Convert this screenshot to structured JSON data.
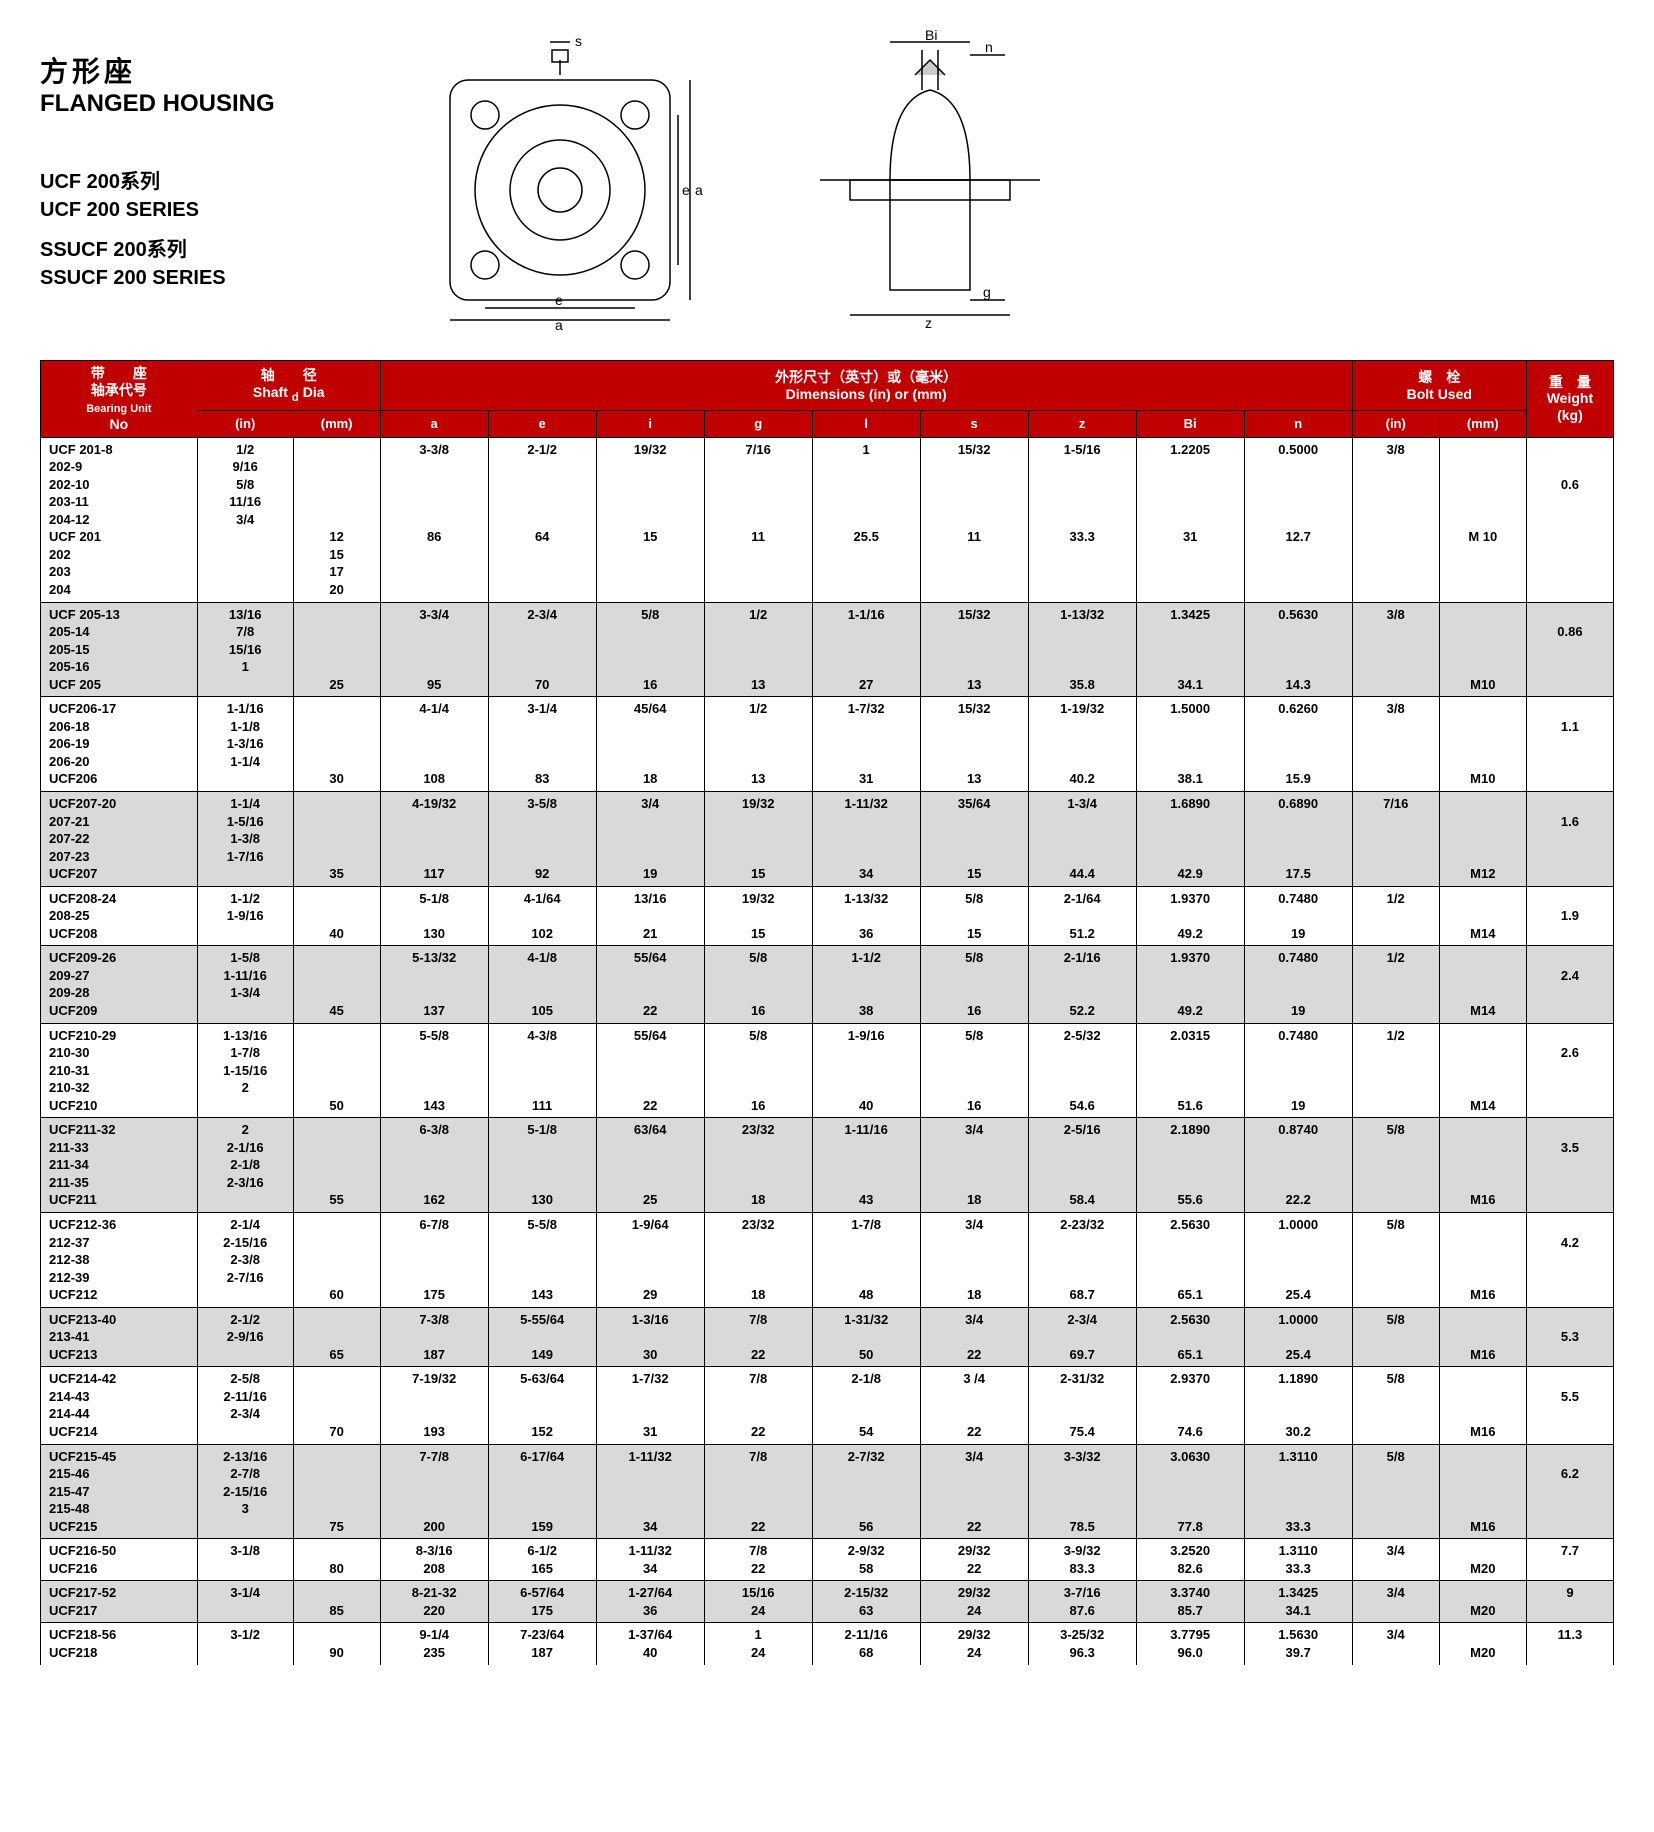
{
  "title": {
    "cn": "方形座",
    "en": "FLANGED HOUSING"
  },
  "series": {
    "l1": "UCF  200系列",
    "l2": "UCF  200 SERIES",
    "l3": "SSUCF  200系列",
    "l4": "SSUCF  200 SERIES"
  },
  "header": {
    "bearing": {
      "top": "带　　座",
      "mid": "轴承代号",
      "bot": "Bearing Unit",
      "no": "No"
    },
    "shaft": {
      "top": "轴　　径",
      "mid": "Shaft",
      "d": "d",
      "dia": "Dia",
      "in": "(in)",
      "mm": "(mm)"
    },
    "dims": {
      "top": "外形尺寸（英寸）或（毫米）",
      "bot": "Dimensions (in) or (mm)",
      "a": "a",
      "e": "e",
      "i": "i",
      "g": "g",
      "l": "l",
      "s": "s",
      "z": "z",
      "Bi": "Bi",
      "n": "n"
    },
    "bolt": {
      "top": "螺　栓",
      "bot": "Bolt Used",
      "in": "(in)",
      "mm": "(mm)"
    },
    "weight": {
      "top": "重　量",
      "bot": "Weight",
      "kg": "(kg)"
    }
  },
  "groups": [
    {
      "alt": false,
      "no": [
        "UCF 201-8",
        "202-9",
        "202-10",
        "203-11",
        "204-12",
        "UCF 201",
        "202",
        "203",
        "204"
      ],
      "shaft_in": [
        "1/2",
        "9/16",
        "5/8",
        "11/16",
        "3/4"
      ],
      "shaft_mm": [
        "",
        "",
        "",
        "",
        "",
        "12",
        "15",
        "17",
        "20"
      ],
      "a": [
        "3-3/8",
        "",
        "",
        "",
        "",
        "86"
      ],
      "e": [
        "2-1/2",
        "",
        "",
        "",
        "",
        "64"
      ],
      "i": [
        "19/32",
        "",
        "",
        "",
        "",
        "15"
      ],
      "g": [
        "7/16",
        "",
        "",
        "",
        "",
        "11"
      ],
      "l": [
        "1",
        "",
        "",
        "",
        "",
        "25.5"
      ],
      "s": [
        "15/32",
        "",
        "",
        "",
        "",
        "11"
      ],
      "z": [
        "1-5/16",
        "",
        "",
        "",
        "",
        "33.3"
      ],
      "Bi": [
        "1.2205",
        "",
        "",
        "",
        "",
        "31"
      ],
      "n": [
        "0.5000",
        "",
        "",
        "",
        "",
        "12.7"
      ],
      "bin": [
        "3/8"
      ],
      "bmm": [
        "",
        "",
        "",
        "",
        "",
        "M 10"
      ],
      "wt": [
        "",
        "",
        "0.6"
      ]
    },
    {
      "alt": true,
      "no": [
        "UCF 205-13",
        "205-14",
        "205-15",
        "205-16",
        "UCF 205"
      ],
      "shaft_in": [
        "13/16",
        "7/8",
        "15/16",
        "1"
      ],
      "shaft_mm": [
        "",
        "",
        "",
        "",
        "25"
      ],
      "a": [
        "3-3/4",
        "",
        "",
        "",
        "95"
      ],
      "e": [
        "2-3/4",
        "",
        "",
        "",
        "70"
      ],
      "i": [
        "5/8",
        "",
        "",
        "",
        "16"
      ],
      "g": [
        "1/2",
        "",
        "",
        "",
        "13"
      ],
      "l": [
        "1-1/16",
        "",
        "",
        "",
        "27"
      ],
      "s": [
        "15/32",
        "",
        "",
        "",
        "13"
      ],
      "z": [
        "1-13/32",
        "",
        "",
        "",
        "35.8"
      ],
      "Bi": [
        "1.3425",
        "",
        "",
        "",
        "34.1"
      ],
      "n": [
        "0.5630",
        "",
        "",
        "",
        "14.3"
      ],
      "bin": [
        "3/8"
      ],
      "bmm": [
        "",
        "",
        "",
        "",
        "M10"
      ],
      "wt": [
        "",
        "0.86"
      ]
    },
    {
      "alt": false,
      "no": [
        "UCF206-17",
        "206-18",
        "206-19",
        "206-20",
        "UCF206"
      ],
      "shaft_in": [
        "1-1/16",
        "1-1/8",
        "1-3/16",
        "1-1/4"
      ],
      "shaft_mm": [
        "",
        "",
        "",
        "",
        "30"
      ],
      "a": [
        "4-1/4",
        "",
        "",
        "",
        "108"
      ],
      "e": [
        "3-1/4",
        "",
        "",
        "",
        "83"
      ],
      "i": [
        "45/64",
        "",
        "",
        "",
        "18"
      ],
      "g": [
        "1/2",
        "",
        "",
        "",
        "13"
      ],
      "l": [
        "1-7/32",
        "",
        "",
        "",
        "31"
      ],
      "s": [
        "15/32",
        "",
        "",
        "",
        "13"
      ],
      "z": [
        "1-19/32",
        "",
        "",
        "",
        "40.2"
      ],
      "Bi": [
        "1.5000",
        "",
        "",
        "",
        "38.1"
      ],
      "n": [
        "0.6260",
        "",
        "",
        "",
        "15.9"
      ],
      "bin": [
        "3/8"
      ],
      "bmm": [
        "",
        "",
        "",
        "",
        "M10"
      ],
      "wt": [
        "",
        "1.1"
      ]
    },
    {
      "alt": true,
      "no": [
        "UCF207-20",
        "207-21",
        "207-22",
        "207-23",
        "UCF207"
      ],
      "shaft_in": [
        "1-1/4",
        "1-5/16",
        "1-3/8",
        "1-7/16"
      ],
      "shaft_mm": [
        "",
        "",
        "",
        "",
        "35"
      ],
      "a": [
        "4-19/32",
        "",
        "",
        "",
        "117"
      ],
      "e": [
        "3-5/8",
        "",
        "",
        "",
        "92"
      ],
      "i": [
        "3/4",
        "",
        "",
        "",
        "19"
      ],
      "g": [
        "19/32",
        "",
        "",
        "",
        "15"
      ],
      "l": [
        "1-11/32",
        "",
        "",
        "",
        "34"
      ],
      "s": [
        "35/64",
        "",
        "",
        "",
        "15"
      ],
      "z": [
        "1-3/4",
        "",
        "",
        "",
        "44.4"
      ],
      "Bi": [
        "1.6890",
        "",
        "",
        "",
        "42.9"
      ],
      "n": [
        "0.6890",
        "",
        "",
        "",
        "17.5"
      ],
      "bin": [
        "7/16"
      ],
      "bmm": [
        "",
        "",
        "",
        "",
        "M12"
      ],
      "wt": [
        "",
        "1.6"
      ]
    },
    {
      "alt": false,
      "no": [
        "UCF208-24",
        "208-25",
        "UCF208"
      ],
      "shaft_in": [
        "1-1/2",
        "1-9/16"
      ],
      "shaft_mm": [
        "",
        "",
        "40"
      ],
      "a": [
        "5-1/8",
        "",
        "130"
      ],
      "e": [
        "4-1/64",
        "",
        "102"
      ],
      "i": [
        "13/16",
        "",
        "21"
      ],
      "g": [
        "19/32",
        "",
        "15"
      ],
      "l": [
        "1-13/32",
        "",
        "36"
      ],
      "s": [
        "5/8",
        "",
        "15"
      ],
      "z": [
        "2-1/64",
        "",
        "51.2"
      ],
      "Bi": [
        "1.9370",
        "",
        "49.2"
      ],
      "n": [
        "0.7480",
        "",
        "19"
      ],
      "bin": [
        "1/2"
      ],
      "bmm": [
        "",
        "",
        "M14"
      ],
      "wt": [
        "",
        "1.9"
      ]
    },
    {
      "alt": true,
      "no": [
        "UCF209-26",
        "209-27",
        "209-28",
        "UCF209"
      ],
      "shaft_in": [
        "1-5/8",
        "1-11/16",
        "1-3/4"
      ],
      "shaft_mm": [
        "",
        "",
        "",
        "45"
      ],
      "a": [
        "5-13/32",
        "",
        "",
        "137"
      ],
      "e": [
        "4-1/8",
        "",
        "",
        "105"
      ],
      "i": [
        "55/64",
        "",
        "",
        "22"
      ],
      "g": [
        "5/8",
        "",
        "",
        "16"
      ],
      "l": [
        "1-1/2",
        "",
        "",
        "38"
      ],
      "s": [
        "5/8",
        "",
        "",
        "16"
      ],
      "z": [
        "2-1/16",
        "",
        "",
        "52.2"
      ],
      "Bi": [
        "1.9370",
        "",
        "",
        "49.2"
      ],
      "n": [
        "0.7480",
        "",
        "",
        "19"
      ],
      "bin": [
        "1/2"
      ],
      "bmm": [
        "",
        "",
        "",
        "M14"
      ],
      "wt": [
        "",
        "2.4"
      ]
    },
    {
      "alt": false,
      "no": [
        "UCF210-29",
        "210-30",
        "210-31",
        "210-32",
        "UCF210"
      ],
      "shaft_in": [
        "1-13/16",
        "1-7/8",
        "1-15/16",
        "2"
      ],
      "shaft_mm": [
        "",
        "",
        "",
        "",
        "50"
      ],
      "a": [
        "5-5/8",
        "",
        "",
        "",
        "143"
      ],
      "e": [
        "4-3/8",
        "",
        "",
        "",
        "111"
      ],
      "i": [
        "55/64",
        "",
        "",
        "",
        "22"
      ],
      "g": [
        "5/8",
        "",
        "",
        "",
        "16"
      ],
      "l": [
        "1-9/16",
        "",
        "",
        "",
        "40"
      ],
      "s": [
        "5/8",
        "",
        "",
        "",
        "16"
      ],
      "z": [
        "2-5/32",
        "",
        "",
        "",
        "54.6"
      ],
      "Bi": [
        "2.0315",
        "",
        "",
        "",
        "51.6"
      ],
      "n": [
        "0.7480",
        "",
        "",
        "",
        "19"
      ],
      "bin": [
        "1/2"
      ],
      "bmm": [
        "",
        "",
        "",
        "",
        "M14"
      ],
      "wt": [
        "",
        "2.6"
      ]
    },
    {
      "alt": true,
      "no": [
        "UCF211-32",
        "211-33",
        "211-34",
        "211-35",
        "UCF211"
      ],
      "shaft_in": [
        "2",
        "2-1/16",
        "2-1/8",
        "2-3/16"
      ],
      "shaft_mm": [
        "",
        "",
        "",
        "",
        "55"
      ],
      "a": [
        "6-3/8",
        "",
        "",
        "",
        "162"
      ],
      "e": [
        "5-1/8",
        "",
        "",
        "",
        "130"
      ],
      "i": [
        "63/64",
        "",
        "",
        "",
        "25"
      ],
      "g": [
        "23/32",
        "",
        "",
        "",
        "18"
      ],
      "l": [
        "1-11/16",
        "",
        "",
        "",
        "43"
      ],
      "s": [
        "3/4",
        "",
        "",
        "",
        "18"
      ],
      "z": [
        "2-5/16",
        "",
        "",
        "",
        "58.4"
      ],
      "Bi": [
        "2.1890",
        "",
        "",
        "",
        "55.6"
      ],
      "n": [
        "0.8740",
        "",
        "",
        "",
        "22.2"
      ],
      "bin": [
        "5/8"
      ],
      "bmm": [
        "",
        "",
        "",
        "",
        "M16"
      ],
      "wt": [
        "",
        "3.5"
      ]
    },
    {
      "alt": false,
      "no": [
        "UCF212-36",
        "212-37",
        "212-38",
        "212-39",
        "UCF212"
      ],
      "shaft_in": [
        "2-1/4",
        "2-15/16",
        "2-3/8",
        "2-7/16"
      ],
      "shaft_mm": [
        "",
        "",
        "",
        "",
        "60"
      ],
      "a": [
        "6-7/8",
        "",
        "",
        "",
        "175"
      ],
      "e": [
        "5-5/8",
        "",
        "",
        "",
        "143"
      ],
      "i": [
        "1-9/64",
        "",
        "",
        "",
        "29"
      ],
      "g": [
        "23/32",
        "",
        "",
        "",
        "18"
      ],
      "l": [
        "1-7/8",
        "",
        "",
        "",
        "48"
      ],
      "s": [
        "3/4",
        "",
        "",
        "",
        "18"
      ],
      "z": [
        "2-23/32",
        "",
        "",
        "",
        "68.7"
      ],
      "Bi": [
        "2.5630",
        "",
        "",
        "",
        "65.1"
      ],
      "n": [
        "1.0000",
        "",
        "",
        "",
        "25.4"
      ],
      "bin": [
        "5/8"
      ],
      "bmm": [
        "",
        "",
        "",
        "",
        "M16"
      ],
      "wt": [
        "",
        "4.2"
      ]
    },
    {
      "alt": true,
      "no": [
        "UCF213-40",
        "213-41",
        "UCF213"
      ],
      "shaft_in": [
        "2-1/2",
        "2-9/16"
      ],
      "shaft_mm": [
        "",
        "",
        "65"
      ],
      "a": [
        "7-3/8",
        "",
        "187"
      ],
      "e": [
        "5-55/64",
        "",
        "149"
      ],
      "i": [
        "1-3/16",
        "",
        "30"
      ],
      "g": [
        "7/8",
        "",
        "22"
      ],
      "l": [
        "1-31/32",
        "",
        "50"
      ],
      "s": [
        "3/4",
        "",
        "22"
      ],
      "z": [
        "2-3/4",
        "",
        "69.7"
      ],
      "Bi": [
        "2.5630",
        "",
        "65.1"
      ],
      "n": [
        "1.0000",
        "",
        "25.4"
      ],
      "bin": [
        "5/8"
      ],
      "bmm": [
        "",
        "",
        "M16"
      ],
      "wt": [
        "",
        "5.3"
      ]
    },
    {
      "alt": false,
      "no": [
        "UCF214-42",
        "214-43",
        "214-44",
        "UCF214"
      ],
      "shaft_in": [
        "2-5/8",
        "2-11/16",
        "2-3/4"
      ],
      "shaft_mm": [
        "",
        "",
        "",
        "70"
      ],
      "a": [
        "7-19/32",
        "",
        "",
        "193"
      ],
      "e": [
        "5-63/64",
        "",
        "",
        "152"
      ],
      "i": [
        "1-7/32",
        "",
        "",
        "31"
      ],
      "g": [
        "7/8",
        "",
        "",
        "22"
      ],
      "l": [
        "2-1/8",
        "",
        "",
        "54"
      ],
      "s": [
        "3 /4",
        "",
        "",
        "22"
      ],
      "z": [
        "2-31/32",
        "",
        "",
        "75.4"
      ],
      "Bi": [
        "2.9370",
        "",
        "",
        "74.6"
      ],
      "n": [
        "1.1890",
        "",
        "",
        "30.2"
      ],
      "bin": [
        "5/8"
      ],
      "bmm": [
        "",
        "",
        "",
        "M16"
      ],
      "wt": [
        "",
        "5.5"
      ]
    },
    {
      "alt": true,
      "no": [
        "UCF215-45",
        "215-46",
        "215-47",
        "215-48",
        "UCF215"
      ],
      "shaft_in": [
        "2-13/16",
        "2-7/8",
        "2-15/16",
        "3"
      ],
      "shaft_mm": [
        "",
        "",
        "",
        "",
        "75"
      ],
      "a": [
        "7-7/8",
        "",
        "",
        "",
        "200"
      ],
      "e": [
        "6-17/64",
        "",
        "",
        "",
        "159"
      ],
      "i": [
        "1-11/32",
        "",
        "",
        "",
        "34"
      ],
      "g": [
        "7/8",
        "",
        "",
        "",
        "22"
      ],
      "l": [
        "2-7/32",
        "",
        "",
        "",
        "56"
      ],
      "s": [
        "3/4",
        "",
        "",
        "",
        "22"
      ],
      "z": [
        "3-3/32",
        "",
        "",
        "",
        "78.5"
      ],
      "Bi": [
        "3.0630",
        "",
        "",
        "",
        "77.8"
      ],
      "n": [
        "1.3110",
        "",
        "",
        "",
        "33.3"
      ],
      "bin": [
        "5/8"
      ],
      "bmm": [
        "",
        "",
        "",
        "",
        "M16"
      ],
      "wt": [
        "",
        "6.2"
      ]
    },
    {
      "alt": false,
      "no": [
        "UCF216-50",
        "UCF216"
      ],
      "shaft_in": [
        "3-1/8"
      ],
      "shaft_mm": [
        "",
        "80"
      ],
      "a": [
        "8-3/16",
        "208"
      ],
      "e": [
        "6-1/2",
        "165"
      ],
      "i": [
        "1-11/32",
        "34"
      ],
      "g": [
        "7/8",
        "22"
      ],
      "l": [
        "2-9/32",
        "58"
      ],
      "s": [
        "29/32",
        "22"
      ],
      "z": [
        "3-9/32",
        "83.3"
      ],
      "Bi": [
        "3.2520",
        "82.6"
      ],
      "n": [
        "1.3110",
        "33.3"
      ],
      "bin": [
        "3/4"
      ],
      "bmm": [
        "",
        "M20"
      ],
      "wt": [
        "7.7"
      ]
    },
    {
      "alt": true,
      "no": [
        "UCF217-52",
        "UCF217"
      ],
      "shaft_in": [
        "3-1/4"
      ],
      "shaft_mm": [
        "",
        "85"
      ],
      "a": [
        "8-21-32",
        "220"
      ],
      "e": [
        "6-57/64",
        "175"
      ],
      "i": [
        "1-27/64",
        "36"
      ],
      "g": [
        "15/16",
        "24"
      ],
      "l": [
        "2-15/32",
        "63"
      ],
      "s": [
        "29/32",
        "24"
      ],
      "z": [
        "3-7/16",
        "87.6"
      ],
      "Bi": [
        "3.3740",
        "85.7"
      ],
      "n": [
        "1.3425",
        "34.1"
      ],
      "bin": [
        "3/4"
      ],
      "bmm": [
        "",
        "M20"
      ],
      "wt": [
        "9"
      ]
    },
    {
      "alt": false,
      "no": [
        "UCF218-56",
        "UCF218"
      ],
      "shaft_in": [
        "3-1/2"
      ],
      "shaft_mm": [
        "",
        "90"
      ],
      "a": [
        "9-1/4",
        "235"
      ],
      "e": [
        "7-23/64",
        "187"
      ],
      "i": [
        "1-37/64",
        "40"
      ],
      "g": [
        "1",
        "24"
      ],
      "l": [
        "2-11/16",
        "68"
      ],
      "s": [
        "29/32",
        "24"
      ],
      "z": [
        "3-25/32",
        "96.3"
      ],
      "Bi": [
        "3.7795",
        "96.0"
      ],
      "n": [
        "1.5630",
        "39.7"
      ],
      "bin": [
        "3/4"
      ],
      "bmm": [
        "",
        "M20"
      ],
      "wt": [
        "11.3"
      ]
    }
  ],
  "diagram_labels": {
    "s": "s",
    "e": "e",
    "a": "a",
    "Bi": "Bi",
    "n": "n",
    "z": "z",
    "g": "g"
  }
}
